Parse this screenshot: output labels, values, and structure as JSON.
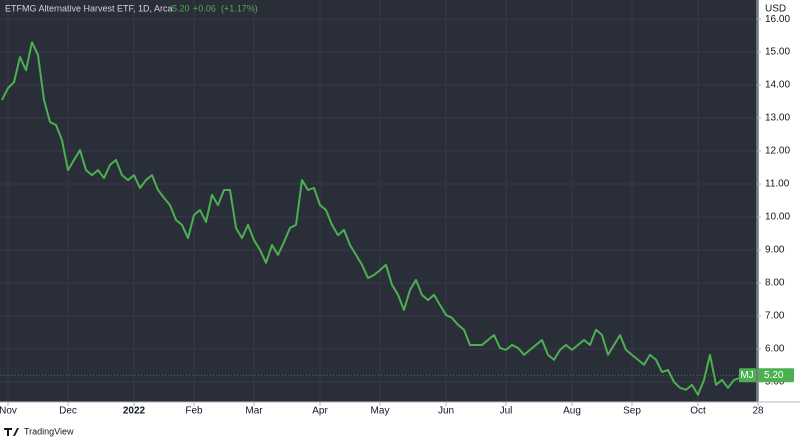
{
  "chart_data": {
    "type": "line",
    "title": "ETFMG Alternative Harvest ETF, 1D, Arca",
    "last": "5.20",
    "change": "+0.06",
    "change_pct": "(+1.17%)",
    "symbol": "MJ",
    "currency": "USD",
    "brand": "TradingView",
    "categories": [
      null,
      "Nov",
      null,
      null,
      null,
      null,
      null,
      null,
      null,
      null,
      null,
      "Dec",
      null,
      null,
      null,
      null,
      null,
      null,
      null,
      null,
      null,
      null,
      "2022",
      null,
      null,
      null,
      null,
      null,
      null,
      null,
      null,
      null,
      "Feb",
      null,
      null,
      null,
      null,
      null,
      null,
      null,
      null,
      null,
      "Mar",
      null,
      null,
      null,
      null,
      null,
      null,
      null,
      null,
      null,
      null,
      "Apr",
      null,
      null,
      null,
      null,
      null,
      null,
      null,
      null,
      null,
      "May",
      null,
      null,
      null,
      null,
      null,
      null,
      null,
      null,
      null,
      null,
      "Jun",
      null,
      null,
      null,
      null,
      null,
      null,
      null,
      null,
      null,
      "Jul",
      null,
      null,
      null,
      null,
      null,
      null,
      null,
      null,
      null,
      null,
      "Aug",
      null,
      null,
      null,
      null,
      null,
      null,
      null,
      null,
      null,
      "Sep",
      null,
      null,
      null,
      null,
      null,
      null,
      null,
      null,
      null,
      null,
      "Oct",
      null,
      null,
      null,
      null,
      null,
      null,
      null,
      null,
      null,
      "28"
    ],
    "series": [
      {
        "name": "MJ",
        "color": "#4caf50",
        "values": [
          13.55,
          13.91,
          14.09,
          14.85,
          14.45,
          15.3,
          14.91,
          13.55,
          12.88,
          12.79,
          12.33,
          11.42,
          11.73,
          12.03,
          11.42,
          11.27,
          11.42,
          11.18,
          11.58,
          11.73,
          11.27,
          11.12,
          11.27,
          10.88,
          11.12,
          11.27,
          10.82,
          10.58,
          10.36,
          9.91,
          9.76,
          9.36,
          10.06,
          10.21,
          9.85,
          10.67,
          10.36,
          10.82,
          10.82,
          9.67,
          9.36,
          9.76,
          9.3,
          9.0,
          8.61,
          9.15,
          8.85,
          9.24,
          9.67,
          9.76,
          11.12,
          10.82,
          10.88,
          10.36,
          10.21,
          9.76,
          9.45,
          9.61,
          9.15,
          8.85,
          8.55,
          8.15,
          8.24,
          8.39,
          8.55,
          7.94,
          7.64,
          7.18,
          7.79,
          8.09,
          7.64,
          7.48,
          7.64,
          7.33,
          7.03,
          6.94,
          6.73,
          6.58,
          6.12,
          6.12,
          6.12,
          6.27,
          6.42,
          6.03,
          5.97,
          6.12,
          6.03,
          5.82,
          5.97,
          6.12,
          6.27,
          5.82,
          5.67,
          5.97,
          6.12,
          5.97,
          6.12,
          6.27,
          6.12,
          6.58,
          6.42,
          5.82,
          6.12,
          6.42,
          5.97,
          5.82,
          5.67,
          5.52,
          5.82,
          5.67,
          5.3,
          5.36,
          5.0,
          4.82,
          4.76,
          4.91,
          4.61,
          5.06,
          5.82,
          4.91,
          5.06,
          4.82,
          5.06,
          5.12,
          5.2,
          null,
          null
        ]
      }
    ],
    "ylim": [
      4.39,
      16.58
    ],
    "yticks": [
      {
        "value": 5,
        "label": "5.00"
      },
      {
        "value": 6,
        "label": "6.00"
      },
      {
        "value": 7,
        "label": "7.00"
      },
      {
        "value": 8,
        "label": "8.00"
      },
      {
        "value": 9,
        "label": "9.00"
      },
      {
        "value": 10,
        "label": "10.00"
      },
      {
        "value": 11,
        "label": "11.00"
      },
      {
        "value": 12,
        "label": "12.00"
      },
      {
        "value": 13,
        "label": "13.00"
      },
      {
        "value": 14,
        "label": "14.00"
      },
      {
        "value": 15,
        "label": "15.00"
      },
      {
        "value": 16,
        "label": "16.00"
      }
    ],
    "grid": true
  }
}
